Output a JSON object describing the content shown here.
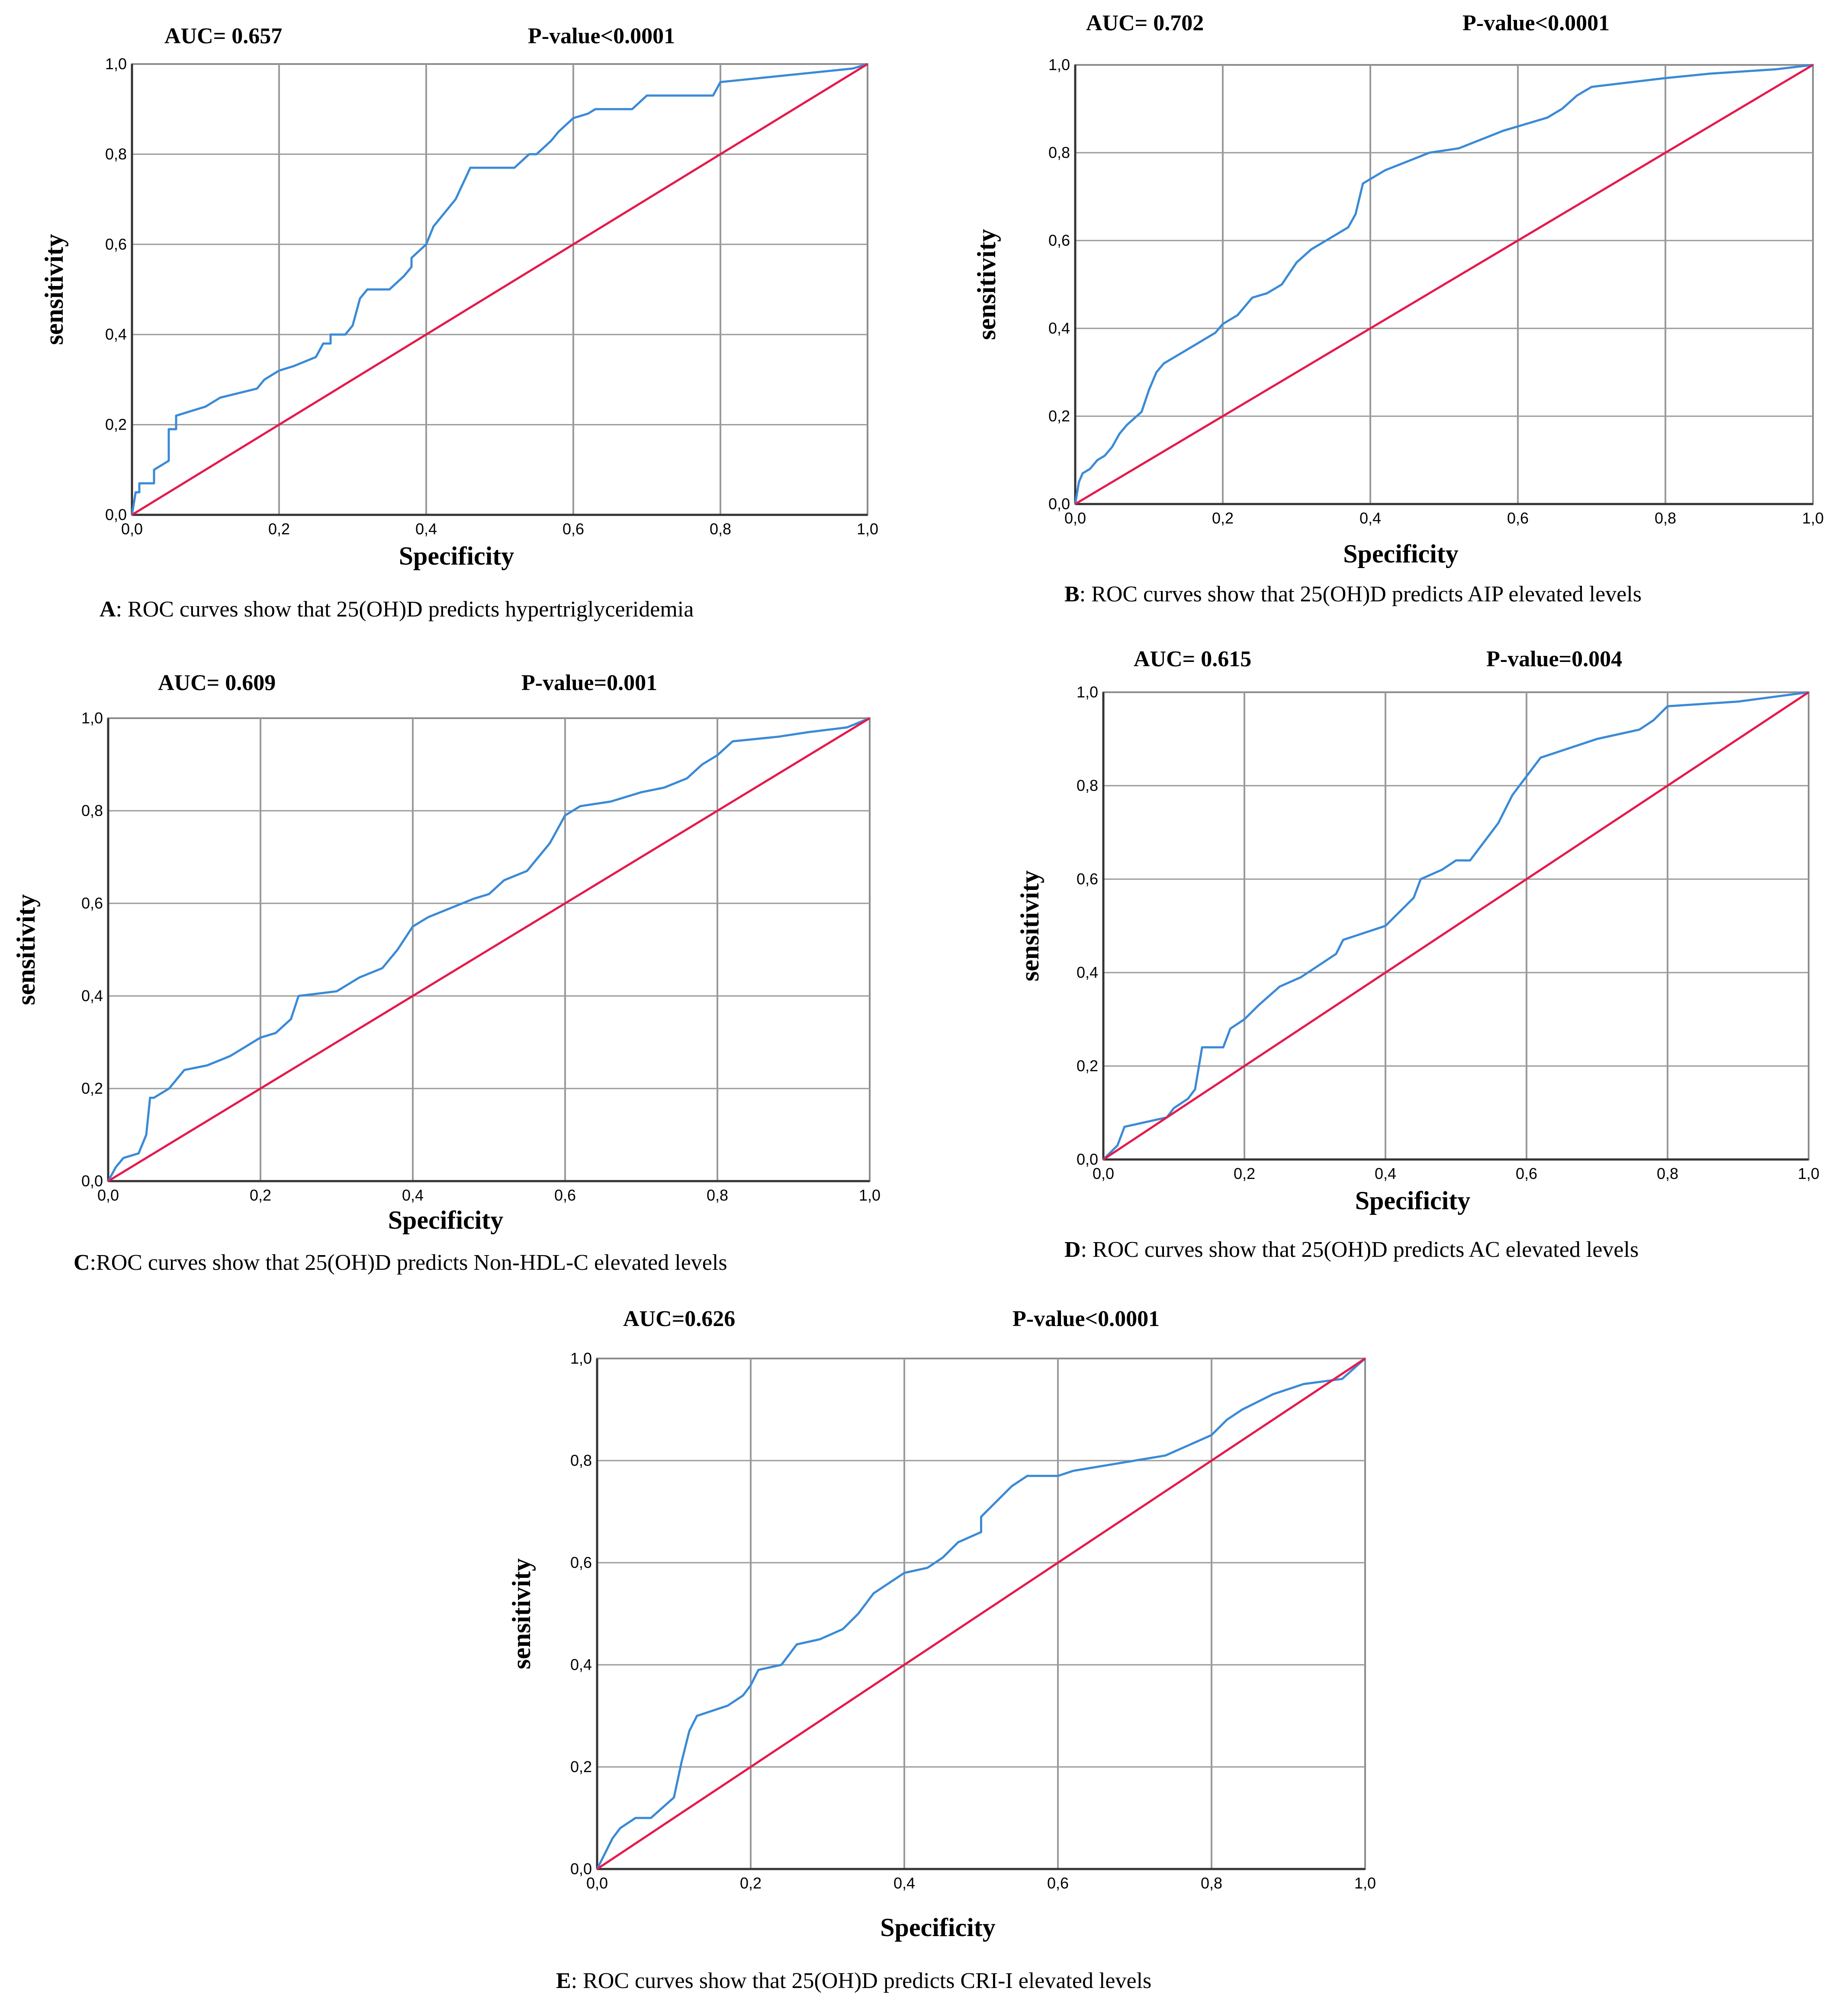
{
  "chart_data": [
    {
      "panel": "A",
      "type": "line",
      "auc_label": "AUC= 0.657",
      "p_label": "P-value<0.0001",
      "xlabel": "Specificity",
      "ylabel": "sensitivity",
      "caption_letter": "A",
      "caption_text": ": ROC curves show that 25(OH)D predicts  hypertriglyceridemia",
      "xlim": [
        0,
        1
      ],
      "ylim": [
        0,
        1
      ],
      "xticks": [
        "0,0",
        "0,2",
        "0,4",
        "0,6",
        "0,8",
        "1,0"
      ],
      "yticks": [
        "0,0",
        "0,2",
        "0,4",
        "0,6",
        "0,8",
        "1,0"
      ],
      "grid": true,
      "series": [
        {
          "color": "#3a8ad6",
          "x": [
            0,
            0.005,
            0.01,
            0.01,
            0.03,
            0.03,
            0.05,
            0.05,
            0.06,
            0.06,
            0.08,
            0.1,
            0.12,
            0.17,
            0.18,
            0.2,
            0.22,
            0.25,
            0.26,
            0.27,
            0.27,
            0.29,
            0.3,
            0.31,
            0.32,
            0.35,
            0.37,
            0.38,
            0.38,
            0.4,
            0.41,
            0.42,
            0.43,
            0.44,
            0.46,
            0.48,
            0.52,
            0.54,
            0.55,
            0.57,
            0.58,
            0.6,
            0.62,
            0.63,
            0.68,
            0.7,
            0.76,
            0.79,
            0.8,
            0.98,
            1
          ],
          "y": [
            0,
            0.05,
            0.05,
            0.07,
            0.07,
            0.1,
            0.12,
            0.19,
            0.19,
            0.22,
            0.23,
            0.24,
            0.26,
            0.28,
            0.3,
            0.32,
            0.33,
            0.35,
            0.38,
            0.38,
            0.4,
            0.4,
            0.42,
            0.48,
            0.5,
            0.5,
            0.53,
            0.55,
            0.57,
            0.6,
            0.64,
            0.66,
            0.68,
            0.7,
            0.77,
            0.77,
            0.77,
            0.8,
            0.8,
            0.83,
            0.85,
            0.88,
            0.89,
            0.9,
            0.9,
            0.93,
            0.93,
            0.93,
            0.96,
            0.99,
            1
          ]
        },
        {
          "color": "#e41a4e",
          "x": [
            0,
            1
          ],
          "y": [
            0,
            1
          ]
        }
      ]
    },
    {
      "panel": "B",
      "type": "line",
      "auc_label": "AUC=  0.702",
      "p_label": "P-value<0.0001",
      "xlabel": "Specificity",
      "ylabel": "sensitivity",
      "caption_letter": "B",
      "caption_text": ": ROC curves show that 25(OH)D predicts  AIP elevated levels",
      "xlim": [
        0,
        1
      ],
      "ylim": [
        0,
        1
      ],
      "xticks": [
        "0,0",
        "0,2",
        "0,4",
        "0,6",
        "0,8",
        "1,0"
      ],
      "yticks": [
        "0,0",
        "0,2",
        "0,4",
        "0,6",
        "0,8",
        "1,0"
      ],
      "grid": true,
      "series": [
        {
          "color": "#3a8ad6",
          "x": [
            0,
            0.005,
            0.01,
            0.02,
            0.03,
            0.04,
            0.05,
            0.06,
            0.07,
            0.09,
            0.1,
            0.11,
            0.12,
            0.13,
            0.15,
            0.17,
            0.19,
            0.2,
            0.22,
            0.24,
            0.26,
            0.28,
            0.3,
            0.32,
            0.34,
            0.36,
            0.37,
            0.38,
            0.39,
            0.4,
            0.42,
            0.45,
            0.48,
            0.52,
            0.55,
            0.58,
            0.62,
            0.64,
            0.66,
            0.68,
            0.7,
            0.75,
            0.8,
            0.86,
            0.95,
            1
          ],
          "y": [
            0,
            0.05,
            0.07,
            0.08,
            0.1,
            0.11,
            0.13,
            0.16,
            0.18,
            0.21,
            0.26,
            0.3,
            0.32,
            0.33,
            0.35,
            0.37,
            0.39,
            0.41,
            0.43,
            0.47,
            0.48,
            0.5,
            0.55,
            0.58,
            0.6,
            0.62,
            0.63,
            0.66,
            0.73,
            0.74,
            0.76,
            0.78,
            0.8,
            0.81,
            0.83,
            0.85,
            0.87,
            0.88,
            0.9,
            0.93,
            0.95,
            0.96,
            0.97,
            0.98,
            0.99,
            1
          ]
        },
        {
          "color": "#e41a4e",
          "x": [
            0,
            1
          ],
          "y": [
            0,
            1
          ]
        }
      ]
    },
    {
      "panel": "C",
      "type": "line",
      "auc_label": "AUC= 0.609",
      "p_label": "P-value=0.001",
      "xlabel": "Specificity",
      "ylabel": "sensitivity",
      "caption_letter": "C",
      "caption_text": ":ROC curves show that 25(OH)D predicts Non-HDL-C elevated levels",
      "xlim": [
        0,
        1
      ],
      "ylim": [
        0,
        1
      ],
      "xticks": [
        "0,0",
        "0,2",
        "0,4",
        "0,6",
        "0,8",
        "1,0"
      ],
      "yticks": [
        "0,0",
        "0,2",
        "0,4",
        "0,6",
        "0,8",
        "1,0"
      ],
      "grid": true,
      "series": [
        {
          "color": "#3a8ad6",
          "x": [
            0,
            0.01,
            0.02,
            0.04,
            0.05,
            0.055,
            0.06,
            0.08,
            0.09,
            0.1,
            0.13,
            0.16,
            0.18,
            0.2,
            0.22,
            0.24,
            0.25,
            0.3,
            0.33,
            0.36,
            0.38,
            0.4,
            0.42,
            0.45,
            0.48,
            0.5,
            0.52,
            0.55,
            0.58,
            0.59,
            0.6,
            0.62,
            0.66,
            0.7,
            0.73,
            0.76,
            0.78,
            0.8,
            0.82,
            0.88,
            0.92,
            0.97,
            1
          ],
          "y": [
            0,
            0.03,
            0.05,
            0.06,
            0.1,
            0.18,
            0.18,
            0.2,
            0.22,
            0.24,
            0.25,
            0.27,
            0.29,
            0.31,
            0.32,
            0.35,
            0.4,
            0.41,
            0.44,
            0.46,
            0.5,
            0.55,
            0.57,
            0.59,
            0.61,
            0.62,
            0.65,
            0.67,
            0.73,
            0.76,
            0.79,
            0.81,
            0.82,
            0.84,
            0.85,
            0.87,
            0.9,
            0.92,
            0.95,
            0.96,
            0.97,
            0.98,
            1
          ]
        },
        {
          "color": "#e41a4e",
          "x": [
            0,
            1
          ],
          "y": [
            0,
            1
          ]
        }
      ]
    },
    {
      "panel": "D",
      "type": "line",
      "auc_label": "AUC= 0.615",
      "p_label": "P-value=0.004",
      "xlabel": "Specificity",
      "ylabel": "sensitivity",
      "caption_letter": "D",
      "caption_text": ": ROC curves show that 25(OH)D predicts  AC elevated levels",
      "xlim": [
        0,
        1
      ],
      "ylim": [
        0,
        1
      ],
      "xticks": [
        "0,0",
        "0,2",
        "0,4",
        "0,6",
        "0,8",
        "1,0"
      ],
      "yticks": [
        "0,0",
        "0,2",
        "0,4",
        "0,6",
        "0,8",
        "1,0"
      ],
      "grid": true,
      "series": [
        {
          "color": "#3a8ad6",
          "x": [
            0,
            0.02,
            0.03,
            0.06,
            0.09,
            0.1,
            0.12,
            0.13,
            0.14,
            0.17,
            0.18,
            0.2,
            0.22,
            0.25,
            0.28,
            0.3,
            0.33,
            0.34,
            0.4,
            0.42,
            0.44,
            0.45,
            0.48,
            0.5,
            0.52,
            0.54,
            0.56,
            0.58,
            0.6,
            0.62,
            0.66,
            0.7,
            0.76,
            0.78,
            0.8,
            0.9,
            1
          ],
          "y": [
            0,
            0.03,
            0.07,
            0.08,
            0.09,
            0.11,
            0.13,
            0.15,
            0.24,
            0.24,
            0.28,
            0.3,
            0.33,
            0.37,
            0.39,
            0.41,
            0.44,
            0.47,
            0.5,
            0.53,
            0.56,
            0.6,
            0.62,
            0.64,
            0.64,
            0.68,
            0.72,
            0.78,
            0.82,
            0.86,
            0.88,
            0.9,
            0.92,
            0.94,
            0.97,
            0.98,
            1
          ]
        },
        {
          "color": "#e41a4e",
          "x": [
            0,
            1
          ],
          "y": [
            0,
            1
          ]
        }
      ]
    },
    {
      "panel": "E",
      "type": "line",
      "auc_label": "AUC=0.626",
      "p_label": "P-value<0.0001",
      "xlabel": "Specificity",
      "ylabel": "sensitivity",
      "caption_letter": "E",
      "caption_text": ": ROC curves show that 25(OH)D predicts  CRI-I  elevated levels",
      "xlim": [
        0,
        1
      ],
      "ylim": [
        0,
        1
      ],
      "xticks": [
        "0,0",
        "0,2",
        "0,4",
        "0,6",
        "0,8",
        "1,0"
      ],
      "yticks": [
        "0,0",
        "0,2",
        "0,4",
        "0,6",
        "0,8",
        "1,0"
      ],
      "grid": true,
      "series": [
        {
          "color": "#3a8ad6",
          "x": [
            0,
            0.01,
            0.02,
            0.03,
            0.05,
            0.07,
            0.1,
            0.11,
            0.12,
            0.13,
            0.15,
            0.17,
            0.19,
            0.2,
            0.21,
            0.24,
            0.26,
            0.29,
            0.32,
            0.34,
            0.36,
            0.38,
            0.4,
            0.43,
            0.45,
            0.47,
            0.5,
            0.5,
            0.52,
            0.54,
            0.56,
            0.6,
            0.62,
            0.66,
            0.7,
            0.74,
            0.77,
            0.8,
            0.82,
            0.84,
            0.88,
            0.92,
            0.97,
            1
          ],
          "y": [
            0,
            0.03,
            0.06,
            0.08,
            0.1,
            0.1,
            0.14,
            0.21,
            0.27,
            0.3,
            0.31,
            0.32,
            0.34,
            0.36,
            0.39,
            0.4,
            0.44,
            0.45,
            0.47,
            0.5,
            0.54,
            0.56,
            0.58,
            0.59,
            0.61,
            0.64,
            0.66,
            0.69,
            0.72,
            0.75,
            0.77,
            0.77,
            0.78,
            0.79,
            0.8,
            0.81,
            0.83,
            0.85,
            0.88,
            0.9,
            0.93,
            0.95,
            0.96,
            1
          ]
        },
        {
          "color": "#e41a4e",
          "x": [
            0,
            1
          ],
          "y": [
            0,
            1
          ]
        }
      ]
    }
  ]
}
